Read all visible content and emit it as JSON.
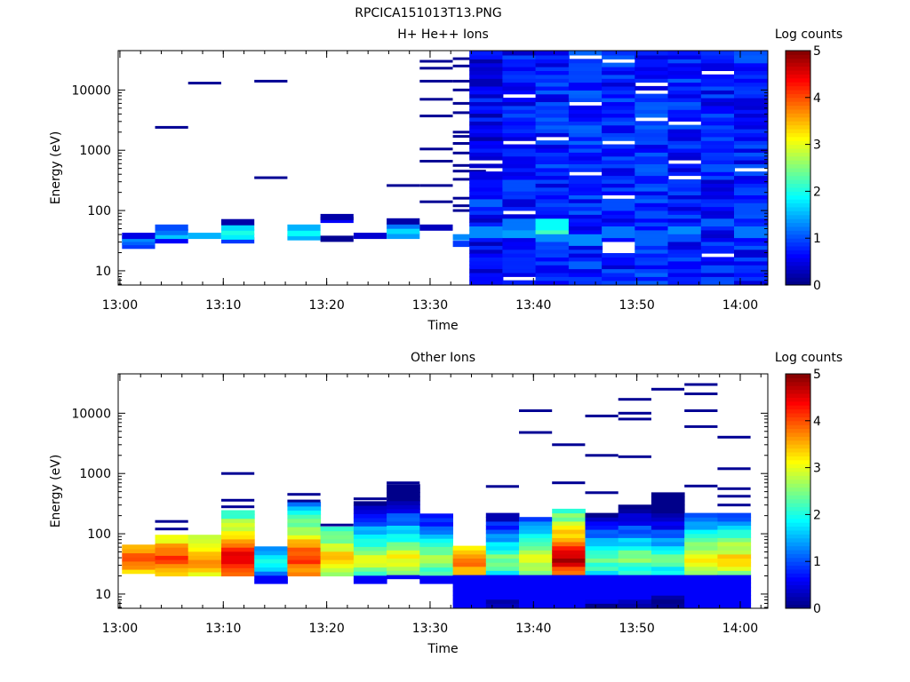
{
  "figure": {
    "title": "RPCICA151013T13.PNG",
    "background": "#ffffff"
  },
  "chart_data": [
    {
      "type": "heatmap",
      "title": "H+ He++ Ions",
      "xlabel": "Time",
      "ylabel": "Energy (eV)",
      "y_scale": "log",
      "xlim": [
        "12:59:50",
        "14:02:40"
      ],
      "ylim": [
        5.8,
        45000
      ],
      "x_ticks": [
        "13:00",
        "13:10",
        "13:20",
        "13:30",
        "13:40",
        "13:50",
        "14:00"
      ],
      "y_ticks": [
        "10",
        "100",
        "1000",
        "10000"
      ],
      "colorbar": {
        "label": "Log counts",
        "min": 0,
        "max": 5,
        "ticks": [
          "0",
          "1",
          "2",
          "3",
          "4",
          "5"
        ]
      },
      "time_bin_min": 3.2,
      "sparse_cells": [
        [
          0,
          26,
          0.9
        ],
        [
          0,
          30,
          1.1
        ],
        [
          0,
          34,
          1.3
        ],
        [
          0,
          38,
          0.5
        ],
        [
          1,
          32,
          0.6
        ],
        [
          1,
          38,
          1.6
        ],
        [
          1,
          44,
          1.2
        ],
        [
          1,
          52,
          1.0
        ],
        [
          1,
          2400,
          0.1
        ],
        [
          2,
          38,
          1.5
        ],
        [
          2,
          13000,
          0.1
        ],
        [
          3,
          32,
          0.9
        ],
        [
          3,
          37,
          1.8
        ],
        [
          3,
          44,
          2.0
        ],
        [
          3,
          52,
          1.7
        ],
        [
          3,
          64,
          0.2
        ],
        [
          4,
          14000,
          0.1
        ],
        [
          4,
          350,
          0.1
        ],
        [
          5,
          36,
          1.5
        ],
        [
          5,
          42,
          1.9
        ],
        [
          5,
          52,
          1.5
        ],
        [
          6,
          34,
          0.1
        ],
        [
          6,
          70,
          0.6
        ],
        [
          6,
          78,
          0.2
        ],
        [
          7,
          38,
          0.4
        ],
        [
          8,
          38,
          1.4
        ],
        [
          8,
          46,
          1.7
        ],
        [
          8,
          56,
          1.2
        ],
        [
          8,
          66,
          0.2
        ],
        [
          8,
          260,
          0.1
        ],
        [
          9,
          52,
          0.3
        ],
        [
          9,
          140,
          0.1
        ],
        [
          9,
          260,
          0.1
        ],
        [
          9,
          660,
          0.1
        ],
        [
          9,
          1050,
          0.1
        ],
        [
          9,
          3700,
          0.1
        ],
        [
          9,
          7000,
          0.1
        ],
        [
          9,
          14000,
          0.1
        ],
        [
          9,
          23000,
          0.1
        ],
        [
          9,
          30000,
          0.1
        ],
        [
          10,
          28,
          0.9
        ],
        [
          10,
          36,
          1.3
        ],
        [
          10,
          100,
          0.1
        ],
        [
          10,
          120,
          0.1
        ],
        [
          10,
          160,
          0.1
        ],
        [
          10,
          330,
          0.1
        ],
        [
          10,
          450,
          0.1
        ],
        [
          10,
          560,
          0.1
        ],
        [
          10,
          900,
          0.1
        ],
        [
          10,
          1300,
          0.1
        ],
        [
          10,
          1700,
          0.1
        ],
        [
          10,
          2000,
          0.1
        ],
        [
          10,
          4200,
          0.1
        ],
        [
          10,
          6000,
          0.1
        ],
        [
          10,
          10000,
          0.1
        ],
        [
          10,
          14000,
          0.1
        ],
        [
          10,
          25000,
          0.1
        ],
        [
          10,
          33000,
          0.1
        ]
      ],
      "dense_columns": [
        {
          "bin": 10.5,
          "base": 0.55,
          "bright": {
            "40": 1.3,
            "130": 1.1
          }
        },
        {
          "bin": 11.5,
          "base": 0.7,
          "bright": {
            "40": 1.4,
            "55": 1.2,
            "250": 1.0
          }
        },
        {
          "bin": 12.5,
          "base": 0.75,
          "bright": {
            "45": 2.2,
            "55": 1.9,
            "35": 1.3
          }
        },
        {
          "bin": 13.5,
          "base": 0.8,
          "bright": {
            "12": 1.1,
            "30": 1.3
          }
        },
        {
          "bin": 14.5,
          "base": 0.75,
          "bright": {
            "40": 1.2,
            "120": 1.0
          }
        },
        {
          "bin": 15.5,
          "base": 0.8,
          "bright": {
            "30": 1.1,
            "80": 1.0
          }
        },
        {
          "bin": 16.5,
          "base": 0.75,
          "bright": {
            "45": 1.3,
            "35": 1.0
          }
        },
        {
          "bin": 17.5,
          "base": 0.7,
          "bright": {
            "10": 1.0,
            "60": 1.1
          }
        },
        {
          "bin": 18.5,
          "base": 0.75,
          "bright": {
            "40": 1.2,
            "100": 1.0
          }
        }
      ]
    },
    {
      "type": "heatmap",
      "title": "Other Ions",
      "xlabel": "Time",
      "ylabel": "Energy (eV)",
      "y_scale": "log",
      "xlim": [
        "12:59:50",
        "14:02:40"
      ],
      "ylim": [
        5.8,
        45000
      ],
      "x_ticks": [
        "13:00",
        "13:10",
        "13:20",
        "13:30",
        "13:40",
        "13:50",
        "14:00"
      ],
      "y_ticks": [
        "10",
        "100",
        "1000",
        "10000"
      ],
      "colorbar": {
        "label": "Log counts",
        "min": 0,
        "max": 5,
        "ticks": [
          "0",
          "1",
          "2",
          "3",
          "4",
          "5"
        ]
      },
      "time_bin_min": 3.2,
      "column_profiles": [
        {
          "bin": 0,
          "peak": 4.0,
          "lo": 22,
          "hi": 58,
          "tail": []
        },
        {
          "bin": 1,
          "peak": 4.2,
          "lo": 20,
          "hi": 95,
          "tail": [
            120,
            160
          ]
        },
        {
          "bin": 2,
          "peak": 3.8,
          "lo": 20,
          "hi": 90,
          "tail": []
        },
        {
          "bin": 3,
          "peak": 4.6,
          "lo": 20,
          "hi": 240,
          "tail": [
            280,
            360,
            1000
          ]
        },
        {
          "bin": 4,
          "peak": 2.0,
          "lo": 15,
          "hi": 60,
          "tail": []
        },
        {
          "bin": 5,
          "peak": 4.3,
          "lo": 20,
          "hi": 300,
          "tail": [
            350,
            450
          ]
        },
        {
          "bin": 6,
          "peak": 3.6,
          "lo": 20,
          "hi": 120,
          "tail": [
            140
          ]
        },
        {
          "bin": 7,
          "peak": 3.0,
          "lo": 15,
          "hi": 330,
          "tail": [
            380
          ]
        },
        {
          "bin": 8,
          "peak": 3.2,
          "lo": 18,
          "hi": 620,
          "tail": [
            700
          ]
        },
        {
          "bin": 9,
          "peak": 2.8,
          "lo": 15,
          "hi": 210,
          "tail": []
        },
        {
          "bin": 10,
          "peak": 4.0,
          "lo": 6,
          "hi": 58,
          "tail": []
        },
        {
          "bin": 11,
          "peak": 2.6,
          "lo": 6,
          "hi": 190,
          "tail": [
            610
          ]
        },
        {
          "bin": 12,
          "peak": 3.2,
          "lo": 6,
          "hi": 170,
          "tail": [
            4800,
            11000
          ]
        },
        {
          "bin": 13,
          "peak": 4.7,
          "lo": 6,
          "hi": 250,
          "tail": [
            700,
            3000
          ]
        },
        {
          "bin": 14,
          "peak": 2.5,
          "lo": 6,
          "hi": 220,
          "tail": [
            480,
            2000,
            9000
          ]
        },
        {
          "bin": 15,
          "peak": 2.6,
          "lo": 6,
          "hi": 300,
          "tail": [
            1900,
            8000,
            10000,
            17000
          ]
        },
        {
          "bin": 16,
          "peak": 2.4,
          "lo": 6,
          "hi": 420,
          "tail": [
            25000
          ]
        },
        {
          "bin": 17,
          "peak": 3.2,
          "lo": 6,
          "hi": 190,
          "tail": [
            620,
            6000,
            11000,
            21000,
            30000
          ]
        },
        {
          "bin": 18,
          "peak": 3.4,
          "lo": 6,
          "hi": 200,
          "tail": [
            300,
            420,
            560,
            1200,
            4000
          ]
        }
      ]
    }
  ]
}
